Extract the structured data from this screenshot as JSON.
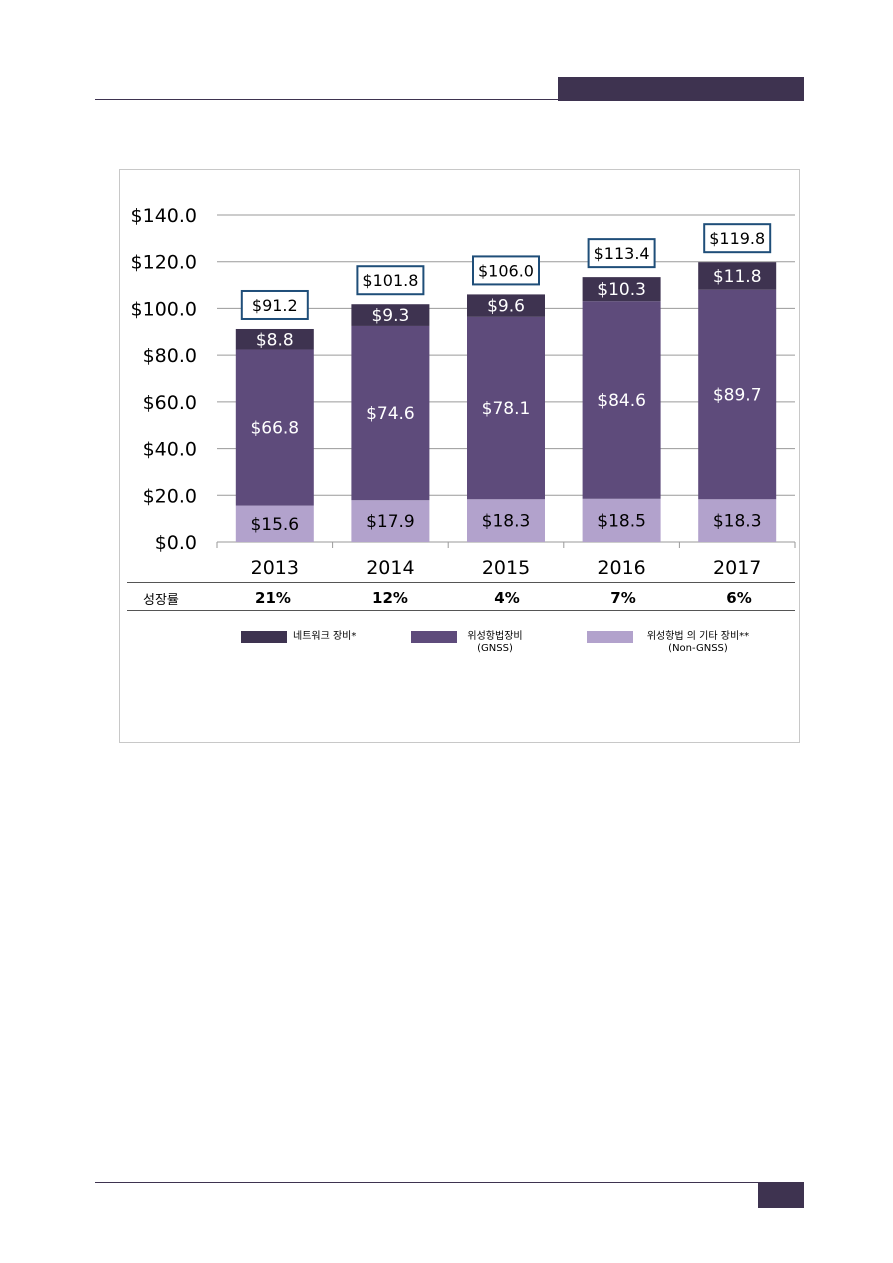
{
  "colors": {
    "network": "#3e3350",
    "gnss": "#5e4b7b",
    "non_gnss": "#b2a2cc",
    "total_box_border": "#1f4e79",
    "accent": "#3e3350"
  },
  "chart_data": {
    "type": "bar",
    "stacked": true,
    "categories": [
      "2013",
      "2014",
      "2015",
      "2016",
      "2017"
    ],
    "series": [
      {
        "name": "위성항법 의 기타 장비** (Non-GNSS)",
        "values": [
          15.6,
          17.9,
          18.3,
          18.5,
          18.3
        ],
        "labels": [
          "$15.6",
          "$17.9",
          "$18.3",
          "$18.5",
          "$18.3"
        ]
      },
      {
        "name": "위성항법장비 (GNSS)",
        "values": [
          66.8,
          74.6,
          78.1,
          84.6,
          89.7
        ],
        "labels": [
          "$66.8",
          "$74.6",
          "$78.1",
          "$84.6",
          "$89.7"
        ]
      },
      {
        "name": "네트워크 장비*",
        "values": [
          8.8,
          9.3,
          9.6,
          10.3,
          11.8
        ],
        "labels": [
          "$8.8",
          "$9.3",
          "$9.6",
          "$10.3",
          "$11.8"
        ]
      }
    ],
    "totals": [
      91.2,
      101.8,
      106.0,
      113.4,
      119.8
    ],
    "total_labels": [
      "$91.2",
      "$101.8",
      "$106.0",
      "$113.4",
      "$119.8"
    ],
    "y_ticks": [
      "$0.0",
      "$20.0",
      "$40.0",
      "$60.0",
      "$80.0",
      "$100.0",
      "$120.0",
      "$140.0"
    ],
    "ylim": [
      0,
      140
    ],
    "grid": true,
    "legend_position": "bottom"
  },
  "growth": {
    "label": "성장률",
    "values": [
      "21%",
      "12%",
      "4%",
      "7%",
      "6%"
    ]
  },
  "legend": [
    {
      "line1": "네트워크 장비*",
      "line2": ""
    },
    {
      "line1": "위성항법장비",
      "line2": "(GNSS)"
    },
    {
      "line1": "위성항법 의 기타 장비**",
      "line2": "(Non-GNSS)"
    }
  ]
}
